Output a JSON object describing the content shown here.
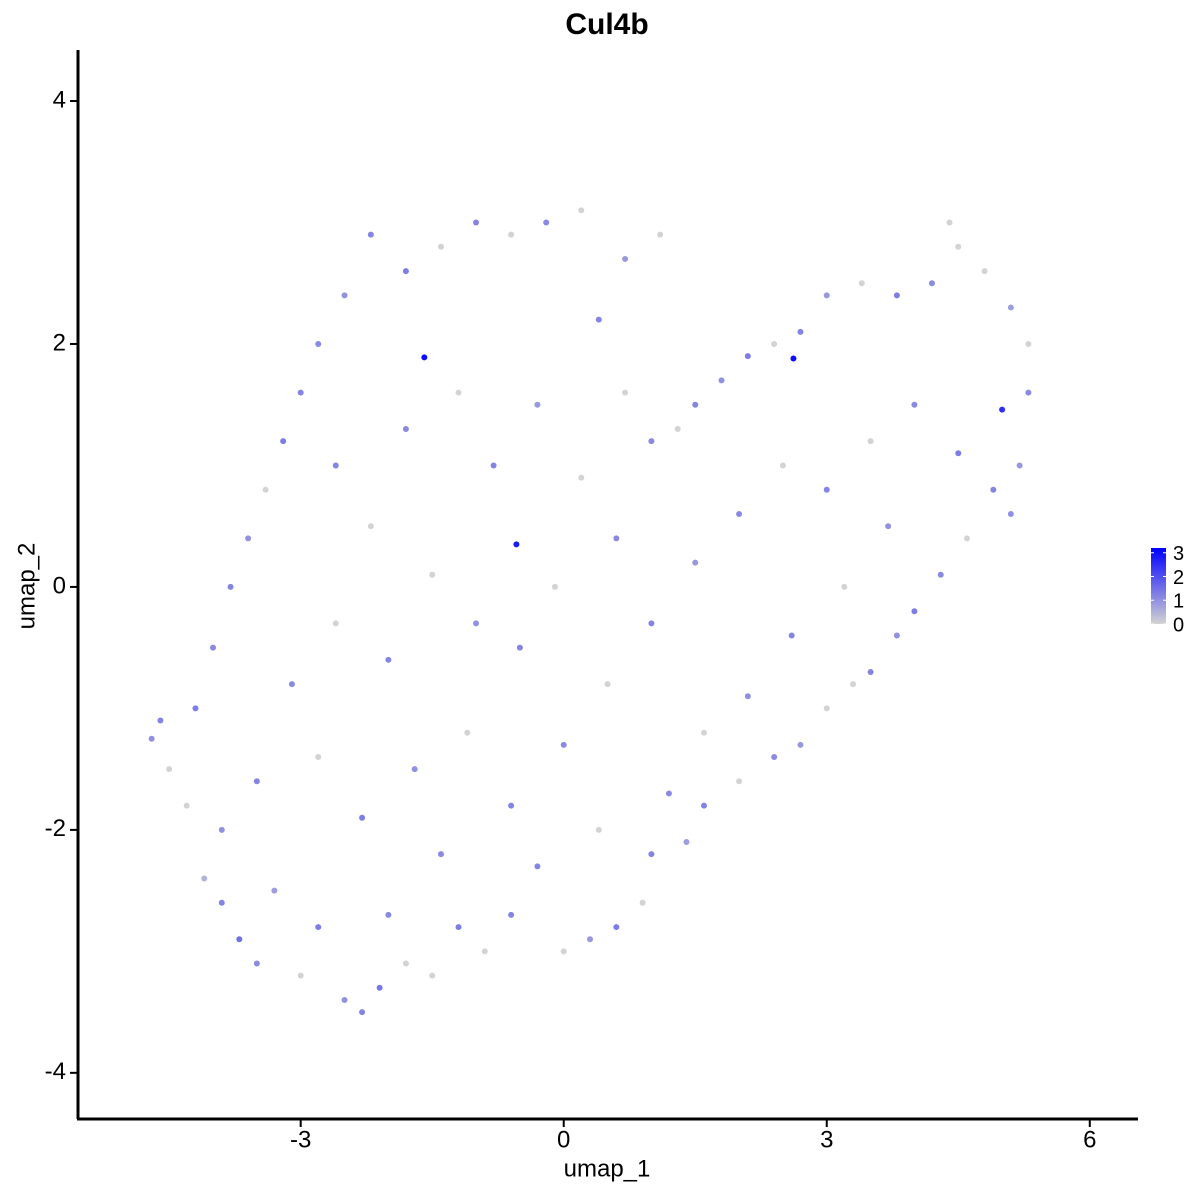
{
  "chart_data": {
    "type": "scatter",
    "title": "Cul4b",
    "x_label": "umap_1",
    "y_label": "umap_2",
    "xlim": [
      -5.54,
      6.55
    ],
    "ylim": [
      -4.38,
      4.42
    ],
    "xticks": [
      -3,
      0,
      3,
      6
    ],
    "yticks": [
      -4,
      -2,
      0,
      2,
      4
    ],
    "colorbar": {
      "lim": [
        0,
        3.2
      ],
      "ticks": [
        0,
        1,
        2,
        3
      ],
      "low": "#d3d3d3",
      "high": "#0000ff"
    },
    "x": [
      -4.7,
      -4.6,
      -4.5,
      -4.3,
      -4.1,
      -3.9,
      -3.7,
      -3.5,
      -3.3,
      -3.0,
      -2.8,
      -2.5,
      -2.3,
      -2.1,
      -2.0,
      -1.8,
      -1.5,
      -1.2,
      -0.9,
      -0.6,
      0,
      0.3,
      0.6,
      0.9,
      1.0,
      1.4,
      1.6,
      2.0,
      2.4,
      2.7,
      3.0,
      3.3,
      3.5,
      3.8,
      4.0,
      4.3,
      4.6,
      4.9,
      5.1,
      5.2,
      5.3,
      5.3,
      5.1,
      4.8,
      4.5,
      4.4,
      4.2,
      3.8,
      3.4,
      3.0,
      2.7,
      2.4,
      2.1,
      1.8,
      1.5,
      1.3,
      1.0,
      0.7,
      0.4,
      0.7,
      1.1,
      0.2,
      -0.2,
      -0.6,
      -1.0,
      -1.4,
      -1.8,
      -2.2,
      -2.5,
      -2.8,
      -3.0,
      -3.2,
      -3.4,
      -3.6,
      -3.8,
      -4.0,
      -4.2,
      -2.6,
      -2.2,
      -1.8,
      -1.2,
      -0.8,
      -0.3,
      0.2,
      0.6,
      -0.1,
      -0.5,
      -1.0,
      -1.5,
      -2.0,
      -2.6,
      -3.1,
      -2.8,
      -2.3,
      -1.7,
      -1.1,
      -0.6,
      0.0,
      0.5,
      1.0,
      1.5,
      2.0,
      2.5,
      3.0,
      3.5,
      4.0,
      4.5,
      3.7,
      3.2,
      2.6,
      2.1,
      1.6,
      1.2,
      0.4,
      -0.3,
      -1.4,
      -3.5,
      -3.9,
      -1.59,
      2.62,
      -0.54,
      5.0
    ],
    "y": [
      -1.25,
      -1.1,
      -1.5,
      -1.8,
      -2.4,
      -2.6,
      -2.9,
      -3.1,
      -2.5,
      -3.2,
      -2.8,
      -3.4,
      -3.5,
      -3.3,
      -2.7,
      -3.1,
      -3.2,
      -2.8,
      -3.0,
      -2.7,
      -3.0,
      -2.9,
      -2.8,
      -2.6,
      -2.2,
      -2.1,
      -1.8,
      -1.6,
      -1.4,
      -1.3,
      -1.0,
      -0.8,
      -0.7,
      -0.4,
      -0.2,
      0.1,
      0.4,
      0.8,
      0.6,
      1.0,
      1.6,
      2.0,
      2.3,
      2.6,
      2.8,
      3.0,
      2.5,
      2.4,
      2.5,
      2.4,
      2.1,
      2.0,
      1.9,
      1.7,
      1.5,
      1.3,
      1.2,
      1.6,
      2.2,
      2.7,
      2.9,
      3.1,
      3.0,
      2.9,
      3.0,
      2.8,
      2.6,
      2.9,
      2.4,
      2.0,
      1.6,
      1.2,
      0.8,
      0.4,
      0.0,
      -0.5,
      -1.0,
      1.0,
      0.5,
      1.3,
      1.6,
      1.0,
      1.5,
      0.9,
      0.4,
      0.0,
      -0.5,
      -0.3,
      0.1,
      -0.6,
      -0.3,
      -0.8,
      -1.4,
      -1.9,
      -1.5,
      -1.2,
      -1.8,
      -1.3,
      -0.8,
      -0.3,
      0.2,
      0.6,
      1.0,
      0.8,
      1.2,
      1.5,
      1.1,
      0.5,
      0.0,
      -0.4,
      -0.9,
      -1.2,
      -1.7,
      -2.0,
      -2.3,
      -2.2,
      -1.6,
      -2.0,
      1.89,
      1.88,
      0.35,
      1.46
    ],
    "values": [
      1,
      1.2,
      0,
      0,
      0.5,
      1.2,
      1.5,
      1.1,
      0.8,
      0,
      1.3,
      1.0,
      1.2,
      1.4,
      1.1,
      0,
      0,
      1.3,
      0,
      1.2,
      0,
      0.9,
      1.3,
      0,
      1.2,
      0.8,
      1.2,
      0,
      1.1,
      0.9,
      0,
      0,
      1.2,
      1.0,
      1.3,
      1.1,
      0,
      1.2,
      1.0,
      0.9,
      1.1,
      0,
      0.8,
      0,
      0,
      0,
      1.1,
      1.3,
      0,
      0.9,
      1.2,
      0,
      1.3,
      1.0,
      1.2,
      0,
      1.1,
      0,
      1.2,
      0.9,
      0,
      0,
      1.1,
      0,
      1.2,
      0,
      1.3,
      1.2,
      1.0,
      1.1,
      1.2,
      1.3,
      0,
      1.0,
      1.2,
      1.1,
      1.3,
      1.2,
      0,
      1.1,
      0,
      1.2,
      0.9,
      0,
      1.1,
      0,
      1.2,
      1.0,
      0,
      1.2,
      0,
      1.1,
      0,
      1.3,
      1.0,
      0,
      1.2,
      1.1,
      0,
      1.2,
      0.9,
      1.1,
      0,
      1.2,
      0,
      1.1,
      1.3,
      1.0,
      0,
      1.2,
      1.0,
      0,
      1.1,
      0,
      1.2,
      1.1,
      1.2,
      1.0,
      3,
      3,
      2.8,
      2.5
    ]
  }
}
